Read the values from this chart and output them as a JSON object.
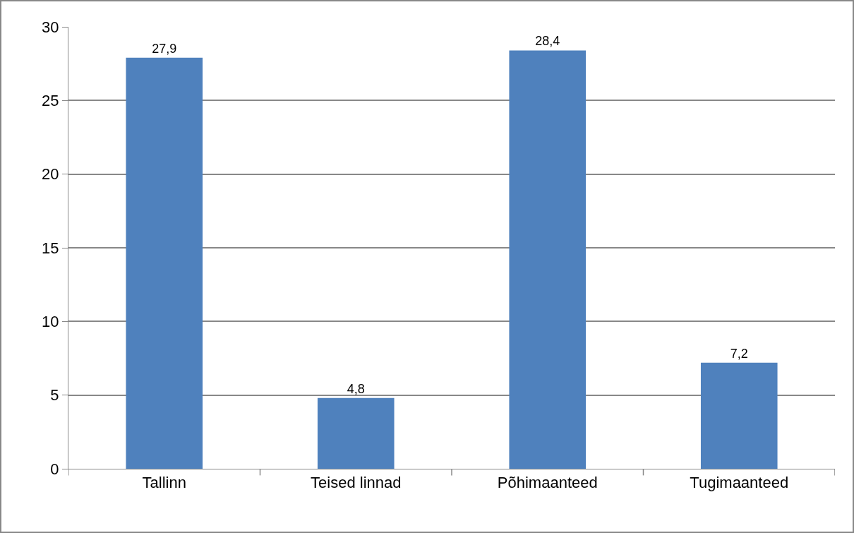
{
  "chart_data": {
    "type": "bar",
    "categories": [
      "Tallinn",
      "Teised linnad",
      "Põhimaanteed",
      "Tugimaanteed"
    ],
    "values": [
      27.9,
      4.8,
      28.4,
      7.2
    ],
    "color": "#4f81bd",
    "value_labels": [
      "27,9",
      "4,8",
      "28,4",
      "7,2"
    ],
    "ylim": [
      0,
      30
    ],
    "yticks": [
      0,
      5,
      10,
      15,
      20,
      25,
      30
    ],
    "grid": "y",
    "legend": false
  }
}
